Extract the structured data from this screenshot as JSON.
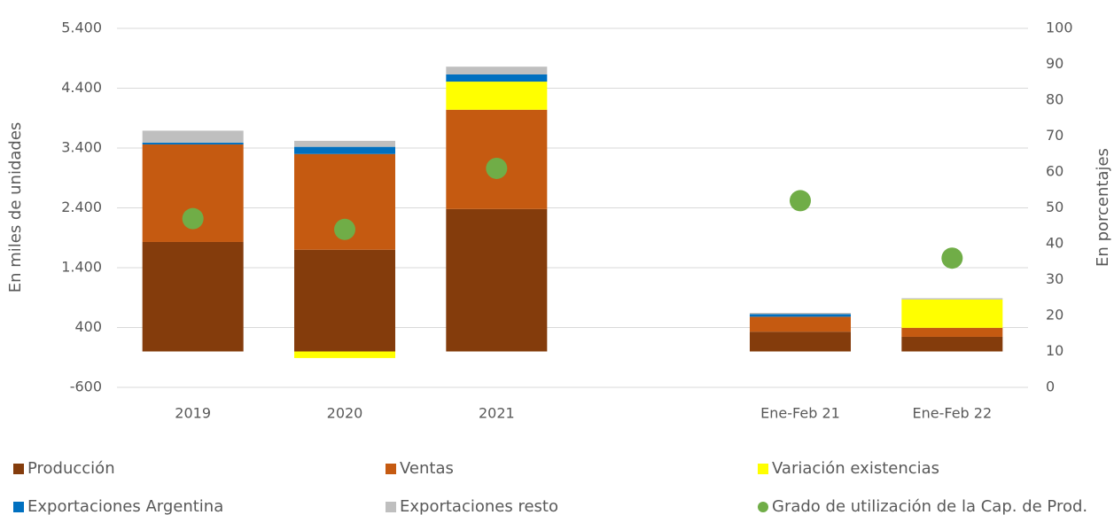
{
  "chart_data": {
    "type": "bar",
    "stacked": true,
    "categories": [
      "2019",
      "2020",
      "2021",
      null,
      "Ene-Feb 21",
      "Ene-Feb 22"
    ],
    "y_label": "En miles de unidades",
    "y2_label": "En porcentajes",
    "ylim": [
      -600,
      5400
    ],
    "yticks": [
      {
        "value": -600,
        "label": "-600"
      },
      400,
      {
        "value": 1400,
        "label": "1.400"
      },
      {
        "value": 2400,
        "label": "2.400"
      },
      {
        "value": 3400,
        "label": "3.400"
      },
      {
        "value": 4400,
        "label": "4.400"
      },
      {
        "value": 5400,
        "label": "5.400"
      }
    ],
    "y2lim": [
      0,
      100
    ],
    "y2ticks": [
      0,
      10,
      20,
      30,
      40,
      50,
      60,
      70,
      80,
      90,
      100
    ],
    "grid": true,
    "series": [
      {
        "name": "Producción",
        "color": "#843c0c",
        "values": [
          1830,
          1700,
          2380,
          null,
          330,
          245
        ]
      },
      {
        "name": "Ventas",
        "color": "#c55a11",
        "values": [
          1630,
          1600,
          1660,
          null,
          250,
          150
        ]
      },
      {
        "name": "Variación existencias",
        "color": "#ffff00",
        "values": [
          0,
          -110,
          470,
          null,
          0,
          475
        ]
      },
      {
        "name": "Exportaciones Argentina",
        "color": "#0070c0",
        "values": [
          30,
          120,
          120,
          null,
          45,
          0
        ]
      },
      {
        "name": "Exportaciones resto",
        "color": "#bfbfbf",
        "values": [
          200,
          100,
          130,
          null,
          20,
          20
        ]
      },
      {
        "name": "Grado de utilización de la Cap. de Prod.",
        "color": "#70ad47",
        "type": "scatter",
        "axis": "y2",
        "values": [
          47,
          44,
          61,
          null,
          52,
          36
        ]
      }
    ]
  }
}
